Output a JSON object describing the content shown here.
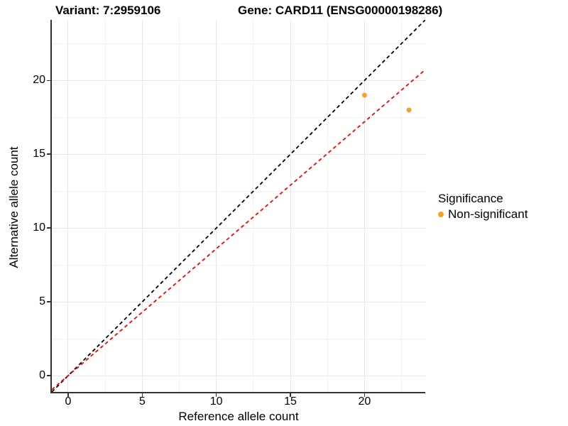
{
  "titles": {
    "variant": "Variant: 7:2959106",
    "gene": "Gene: CARD11 (ENSG00000198286)"
  },
  "legend": {
    "title": "Significance",
    "items": [
      {
        "label": "Non-significant",
        "color": "#F9A026"
      }
    ]
  },
  "colors": {
    "background": "#ffffff",
    "axis_line": "#333333",
    "major_grid": "#e7e7e7",
    "minor_grid": "#f2f2f2",
    "point": "#F9A026",
    "identity_line": "#000000",
    "ratio_line": "#FF0000"
  },
  "chart_data": {
    "type": "scatter",
    "title_left": "Variant: 7:2959106",
    "title_right": "Gene: CARD11 (ENSG00000198286)",
    "xlabel": "Reference allele count",
    "ylabel": "Alternative allele count",
    "grid": "on",
    "legend_position": "right",
    "x": {
      "domain": [
        -1.1,
        24.1
      ],
      "ticks": [
        0,
        5,
        10,
        15,
        20
      ],
      "tick_labels": [
        "0",
        "5",
        "10",
        "15",
        "20"
      ],
      "minor_ticks": [
        2.5,
        7.5,
        12.5,
        17.5,
        22.5
      ]
    },
    "y": {
      "domain": [
        -1.1,
        24.1
      ],
      "ticks": [
        0,
        5,
        10,
        15,
        20
      ],
      "tick_labels": [
        "0",
        "5",
        "10",
        "15",
        "20"
      ],
      "minor_ticks": [
        2.5,
        7.5,
        12.5,
        17.5,
        22.5
      ]
    },
    "points": [
      {
        "x": 20,
        "y": 19,
        "significance": "Non-significant",
        "color": "#F9A026"
      },
      {
        "x": 23,
        "y": 18,
        "significance": "Non-significant",
        "color": "#F9A026"
      }
    ],
    "lines": [
      {
        "name": "identity-line",
        "slope": 1.0,
        "intercept": 0,
        "color": "#000000",
        "style": "dashed"
      },
      {
        "name": "allelic-ratio-line",
        "slope": 0.86,
        "intercept": 0,
        "color": "#FF0000",
        "style": "dashed"
      }
    ]
  }
}
